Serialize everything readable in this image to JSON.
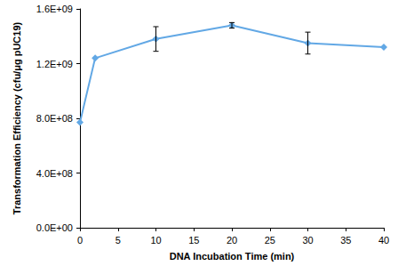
{
  "chart_data": {
    "type": "line",
    "x_label": "DNA Incubation Time (min)",
    "y_label": "Transformation Efficiency (cfu/μg pUC19)",
    "x": [
      0,
      2,
      10,
      20,
      30,
      40
    ],
    "values": [
      770000000,
      1240000000,
      1380000000,
      1480000000,
      1350000000,
      1320000000
    ],
    "errors": [
      0,
      0,
      90000000,
      20000000,
      80000000,
      0
    ],
    "color": "#62a8e5",
    "marker": "diamond",
    "xlim": [
      0,
      40
    ],
    "xticks": [
      0,
      5,
      10,
      15,
      20,
      25,
      30,
      35,
      40
    ],
    "ylim": [
      0,
      1600000000
    ],
    "yticks": [
      {
        "value": 0,
        "label": "0.0E+00"
      },
      {
        "value": 400000000,
        "label": "4.0E+08"
      },
      {
        "value": 800000000,
        "label": "8.0E+08"
      },
      {
        "value": 1200000000,
        "label": "1.2E+09"
      },
      {
        "value": 1600000000,
        "label": "1.6E+09"
      }
    ],
    "grid": false
  }
}
